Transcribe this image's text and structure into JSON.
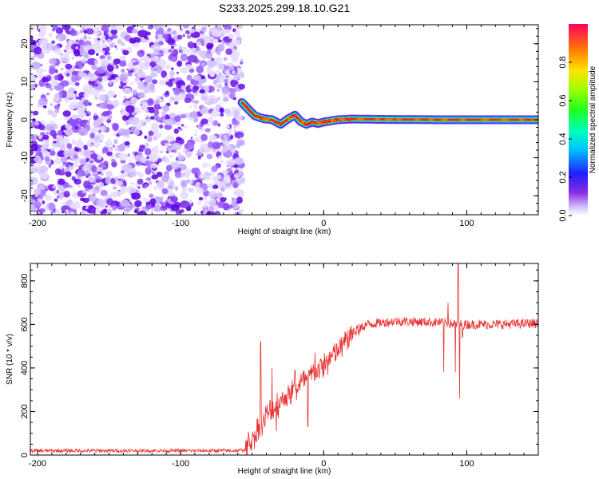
{
  "title": "S233.2025.299.18.10.G21",
  "chart_data": [
    {
      "type": "heatmap",
      "name": "spectrogram",
      "xlabel": "Height of straight line (km)",
      "ylabel": "Frequency (Hz)",
      "xlim": [
        -205,
        150
      ],
      "ylim": [
        -25,
        25
      ],
      "xticks": [
        -200,
        -100,
        0,
        100
      ],
      "xtick_labels": [
        "-200",
        "-100",
        "0",
        "100"
      ],
      "yticks": [
        -20,
        -10,
        0,
        10,
        20
      ],
      "ytick_labels": [
        "-20",
        "-10",
        "0",
        "10",
        "20"
      ],
      "noise_region_x": [
        -205,
        -57
      ],
      "signal_onset_x": -57,
      "signal_path": [
        [
          -57,
          4.5
        ],
        [
          -52,
          2.5
        ],
        [
          -48,
          1.0
        ],
        [
          -42,
          0.3
        ],
        [
          -36,
          0.0
        ],
        [
          -30,
          -1.2
        ],
        [
          -25,
          0.2
        ],
        [
          -20,
          1.2
        ],
        [
          -16,
          -0.5
        ],
        [
          -12,
          -1.2
        ],
        [
          -8,
          -0.6
        ],
        [
          -4,
          -1.0
        ],
        [
          0,
          -0.6
        ],
        [
          5,
          -0.3
        ],
        [
          10,
          0.0
        ],
        [
          20,
          0.2
        ],
        [
          40,
          0.1
        ],
        [
          80,
          0.0
        ],
        [
          150,
          0.0
        ]
      ],
      "colorbar": {
        "label": "Normalized spectral amplitude",
        "range": [
          0,
          1
        ],
        "ticks": [
          0.0,
          0.2,
          0.4,
          0.6,
          0.8
        ],
        "tick_labels": [
          "0.0",
          "0.2",
          "0.4",
          "0.6",
          "0.8"
        ]
      }
    },
    {
      "type": "line",
      "name": "snr",
      "xlabel": "Height of straight line (km)",
      "ylabel": "SNR (10 * v/v)",
      "xlim": [
        -205,
        150
      ],
      "ylim": [
        0,
        880
      ],
      "xticks": [
        -200,
        -100,
        0,
        100
      ],
      "xtick_labels": [
        "-200",
        "-100",
        "0",
        "100"
      ],
      "yticks": [
        0,
        200,
        400,
        600,
        800
      ],
      "ytick_labels": [
        "0",
        "200",
        "400",
        "600",
        "800"
      ],
      "color": "#e83030",
      "envelope": [
        [
          -205,
          20
        ],
        [
          -60,
          20
        ],
        [
          -55,
          25
        ],
        [
          -48,
          90
        ],
        [
          -40,
          180
        ],
        [
          -30,
          250
        ],
        [
          -20,
          300
        ],
        [
          -10,
          360
        ],
        [
          0,
          410
        ],
        [
          10,
          480
        ],
        [
          20,
          560
        ],
        [
          30,
          600
        ],
        [
          50,
          615
        ],
        [
          80,
          610
        ],
        [
          95,
          600
        ],
        [
          120,
          600
        ],
        [
          150,
          605
        ]
      ],
      "spikes": [
        [
          -44,
          520
        ],
        [
          -43,
          90
        ],
        [
          -36,
          400
        ],
        [
          -33,
          110
        ],
        [
          -20,
          390
        ],
        [
          -11,
          130
        ],
        [
          -6,
          470
        ],
        [
          84,
          380
        ],
        [
          87,
          700
        ],
        [
          92,
          380
        ],
        [
          94,
          880
        ],
        [
          95,
          260
        ],
        [
          97,
          540
        ]
      ]
    }
  ],
  "colors": {
    "line": "#e83030",
    "noise": "#8a2be2"
  }
}
